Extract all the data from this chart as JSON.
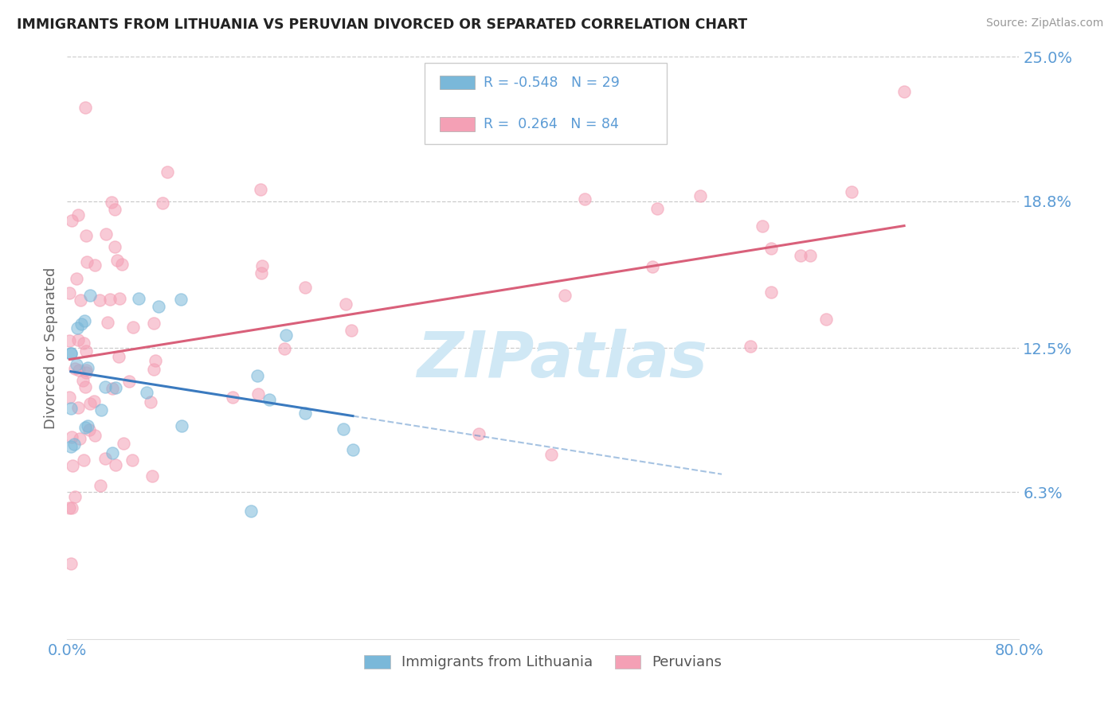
{
  "title": "IMMIGRANTS FROM LITHUANIA VS PERUVIAN DIVORCED OR SEPARATED CORRELATION CHART",
  "source": "Source: ZipAtlas.com",
  "ylabel": "Divorced or Separated",
  "legend_label1": "Immigrants from Lithuania",
  "legend_label2": "Peruvians",
  "R1": -0.548,
  "N1": 29,
  "R2": 0.264,
  "N2": 84,
  "color1": "#7ab8d9",
  "color2": "#f4a0b5",
  "trendline1_color": "#3a7abf",
  "trendline2_color": "#d9607a",
  "xlim": [
    0.0,
    0.8
  ],
  "ylim": [
    0.0,
    0.25
  ],
  "ytick_vals": [
    0.063,
    0.125,
    0.188,
    0.25
  ],
  "ytick_labels": [
    "6.3%",
    "12.5%",
    "18.8%",
    "25.0%"
  ],
  "xticks": [
    0.0,
    0.8
  ],
  "xtick_labels": [
    "0.0%",
    "80.0%"
  ],
  "background_color": "#ffffff",
  "grid_color": "#cccccc",
  "axis_label_color": "#5b9bd5",
  "watermark_color": "#d0e8f5"
}
